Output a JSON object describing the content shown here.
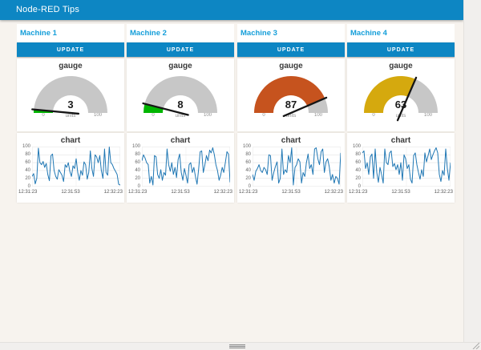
{
  "header": {
    "title": "Node-RED Tips"
  },
  "theme": {
    "accent": "#0d86c3",
    "group_title_color": "#149ed9",
    "line_color": "#1f77b4",
    "gauge_track": "#c7c7c7",
    "needle_color": "#161616",
    "page_bg": "#f7f3ee"
  },
  "common": {
    "gauge_title": "gauge",
    "chart_title": "chart",
    "units_label": "units",
    "gauge_min": "0",
    "gauge_max": "100",
    "y_ticks": [
      "100",
      "80",
      "60",
      "40",
      "20",
      "0"
    ],
    "x_ticks": [
      "12:31:23",
      "12:31:53",
      "12:32:23"
    ]
  },
  "machines": [
    {
      "name": "Machine 1",
      "button_label": "UPDATE",
      "gauge": {
        "value": 3,
        "display": "3",
        "color": "#00b500"
      },
      "chart": {
        "values": [
          25,
          32,
          6,
          20,
          97,
          60,
          55,
          63,
          48,
          58,
          30,
          14,
          78,
          82,
          40,
          25,
          18,
          42,
          35,
          28,
          12,
          55,
          48,
          60,
          38,
          25,
          52,
          45,
          70,
          35,
          15,
          40,
          28,
          62,
          55,
          18,
          35,
          90,
          45,
          25,
          80,
          75,
          60,
          78,
          40,
          20,
          95,
          35,
          28,
          100,
          60,
          55,
          45,
          38,
          30,
          5,
          3
        ]
      }
    },
    {
      "name": "Machine 2",
      "button_label": "UPDATE",
      "gauge": {
        "value": 8,
        "display": "8",
        "color": "#00b500"
      },
      "chart": {
        "values": [
          65,
          80,
          72,
          60,
          55,
          8,
          25,
          3,
          78,
          75,
          30,
          20,
          42,
          15,
          35,
          28,
          95,
          55,
          38,
          60,
          30,
          48,
          22,
          68,
          82,
          35,
          15,
          45,
          28,
          8,
          55,
          60,
          35,
          48,
          25,
          5,
          42,
          88,
          90,
          35,
          55,
          78,
          65,
          92,
          85,
          98,
          80,
          55,
          40,
          15,
          28,
          48,
          35,
          60,
          88,
          82,
          10
        ]
      }
    },
    {
      "name": "Machine 3",
      "button_label": "UPDATE",
      "gauge": {
        "value": 87,
        "display": "87",
        "color": "#c6531e"
      },
      "chart": {
        "values": [
          30,
          15,
          38,
          45,
          55,
          40,
          35,
          48,
          42,
          30,
          80,
          78,
          15,
          35,
          50,
          62,
          8,
          20,
          95,
          30,
          42,
          35,
          78,
          60,
          98,
          3,
          48,
          55,
          70,
          62,
          8,
          35,
          25,
          60,
          82,
          45,
          55,
          30,
          95,
          98,
          70,
          55,
          88,
          95,
          35,
          62,
          70,
          50,
          15,
          30,
          8,
          25,
          20,
          5,
          85
        ]
      }
    },
    {
      "name": "Machine 4",
      "button_label": "UPDATE",
      "gauge": {
        "value": 63,
        "display": "63",
        "color": "#d5a90e"
      },
      "chart": {
        "values": [
          85,
          90,
          45,
          60,
          30,
          75,
          82,
          20,
          95,
          35,
          10,
          48,
          30,
          8,
          95,
          60,
          55,
          85,
          90,
          50,
          58,
          42,
          55,
          30,
          60,
          15,
          80,
          70,
          45,
          55,
          18,
          8,
          78,
          85,
          55,
          35,
          18,
          42,
          25,
          85,
          62,
          78,
          95,
          68,
          80,
          90,
          98,
          85,
          30,
          12,
          40,
          28,
          95,
          45,
          15,
          60
        ]
      }
    }
  ]
}
